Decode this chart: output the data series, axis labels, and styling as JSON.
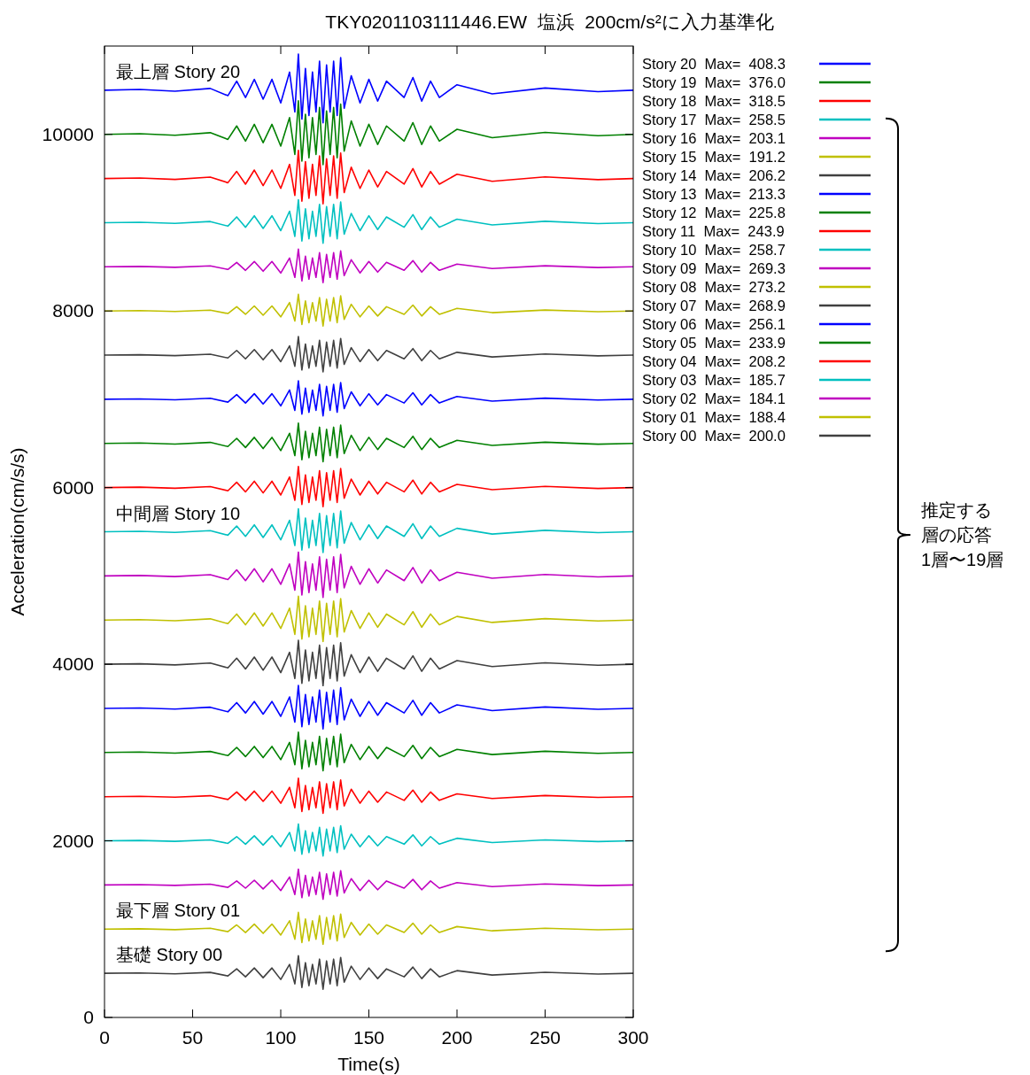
{
  "chart_data": {
    "type": "line",
    "title": "TKY0201103111446.EW  塩浜  200cm/s²に入力基準化",
    "xlabel": "Time(s)",
    "ylabel": "Acceleration(cm/s/s)",
    "xlim": [
      0,
      300
    ],
    "xticks": [
      0,
      50,
      100,
      150,
      200,
      250,
      300
    ],
    "ylim": [
      0,
      11000
    ],
    "yticks": [
      0,
      2000,
      4000,
      6000,
      8000,
      10000
    ],
    "grid": false,
    "legend": "right",
    "line_style": "solid",
    "marker": "none",
    "x": [
      0,
      20,
      40,
      60,
      70,
      75,
      80,
      85,
      90,
      95,
      100,
      105,
      108,
      110,
      112,
      114,
      116,
      118,
      120,
      122,
      124,
      126,
      128,
      130,
      132,
      134,
      136,
      140,
      145,
      150,
      155,
      160,
      170,
      175,
      180,
      185,
      190,
      200,
      220,
      250,
      280,
      300
    ],
    "series": [
      {
        "name": "Story 20  Max=  408.3",
        "color": "#0000ff",
        "values": [
          10500,
          10508,
          10488,
          10520,
          10438,
          10602,
          10418,
          10623,
          10398,
          10623,
          10356,
          10705,
          10254,
          10910,
          10172,
          10746,
          10213,
          10705,
          10254,
          10828,
          10131,
          10787,
          10254,
          10828,
          10213,
          10869,
          10295,
          10664,
          10356,
          10623,
          10377,
          10602,
          10418,
          10644,
          10377,
          10602,
          10418,
          10562,
          10459,
          10525,
          10484,
          10500
        ]
      },
      {
        "name": "Story 19  Max=  376.0",
        "color": "#008000",
        "values": [
          10000,
          10008,
          9989,
          10019,
          9943,
          10095,
          9924,
          10114,
          9905,
          10114,
          9867,
          10190,
          9772,
          10380,
          9696,
          10228,
          9734,
          10190,
          9772,
          10304,
          9658,
          10266,
          9772,
          10304,
          9734,
          10342,
          9810,
          10152,
          9867,
          10114,
          9886,
          10095,
          9924,
          10133,
          9886,
          10095,
          9924,
          10057,
          9962,
          10023,
          9985,
          10000
        ]
      },
      {
        "name": "Story 18  Max=  318.5",
        "color": "#ff0000",
        "values": [
          9500,
          9506,
          9490,
          9516,
          9452,
          9580,
          9436,
          9596,
          9420,
          9596,
          9388,
          9660,
          9308,
          9820,
          9244,
          9692,
          9276,
          9660,
          9308,
          9756,
          9212,
          9724,
          9308,
          9756,
          9276,
          9788,
          9340,
          9628,
          9388,
          9596,
          9404,
          9580,
          9436,
          9612,
          9404,
          9580,
          9436,
          9548,
          9468,
          9519,
          9487,
          9500
        ]
      },
      {
        "name": "Story 17  Max=  258.5",
        "color": "#00c0c0",
        "values": [
          9000,
          9005,
          8992,
          9013,
          8961,
          9065,
          8948,
          9078,
          8935,
          9078,
          8909,
          9130,
          8844,
          9260,
          8792,
          9156,
          8818,
          9130,
          8844,
          9208,
          8766,
          9182,
          8844,
          9208,
          8818,
          9234,
          8870,
          9104,
          8909,
          9078,
          8922,
          9065,
          8948,
          9091,
          8922,
          9065,
          8948,
          9039,
          8974,
          9016,
          8990,
          9000
        ]
      },
      {
        "name": "Story 16  Max=  203.1",
        "color": "#c000c0",
        "values": [
          8500,
          8504,
          8494,
          8510,
          8470,
          8550,
          8460,
          8560,
          8450,
          8560,
          8430,
          8600,
          8380,
          8700,
          8340,
          8620,
          8360,
          8600,
          8380,
          8660,
          8320,
          8640,
          8380,
          8660,
          8360,
          8680,
          8400,
          8580,
          8430,
          8560,
          8440,
          8550,
          8460,
          8570,
          8440,
          8550,
          8460,
          8530,
          8480,
          8512,
          8492,
          8500
        ]
      },
      {
        "name": "Story 15  Max=  191.2",
        "color": "#c0c000",
        "values": [
          8000,
          8004,
          7994,
          8010,
          7971,
          8048,
          7962,
          8057,
          7952,
          8057,
          7933,
          8095,
          7886,
          8190,
          7848,
          8114,
          7867,
          8095,
          7886,
          8152,
          7829,
          8133,
          7886,
          8152,
          7867,
          8171,
          7905,
          8076,
          7933,
          8057,
          7943,
          8048,
          7962,
          8067,
          7943,
          8048,
          7962,
          8029,
          7981,
          8011,
          7992,
          8000
        ]
      },
      {
        "name": "Story 14  Max=  206.2",
        "color": "#404040",
        "values": [
          7500,
          7504,
          7494,
          7511,
          7468,
          7553,
          7458,
          7563,
          7447,
          7563,
          7426,
          7605,
          7374,
          7710,
          7332,
          7626,
          7353,
          7605,
          7374,
          7668,
          7311,
          7647,
          7374,
          7668,
          7353,
          7689,
          7395,
          7584,
          7426,
          7563,
          7437,
          7553,
          7458,
          7574,
          7437,
          7553,
          7458,
          7532,
          7479,
          7513,
          7492,
          7500
        ]
      },
      {
        "name": "Story 13  Max=  213.3",
        "color": "#0000ff",
        "values": [
          7000,
          7004,
          6994,
          7011,
          6968,
          7053,
          6958,
          7063,
          6947,
          7063,
          6926,
          7105,
          6874,
          7210,
          6832,
          7126,
          6853,
          7105,
          6874,
          7168,
          6811,
          7147,
          6874,
          7168,
          6853,
          7189,
          6895,
          7084,
          6926,
          7063,
          6937,
          7053,
          6958,
          7074,
          6937,
          7053,
          6958,
          7032,
          6979,
          7013,
          6992,
          7000
        ]
      },
      {
        "name": "Story 12  Max=  225.8",
        "color": "#008000",
        "values": [
          6500,
          6505,
          6493,
          6512,
          6465,
          6558,
          6454,
          6569,
          6442,
          6569,
          6419,
          6615,
          6362,
          6730,
          6316,
          6638,
          6339,
          6615,
          6362,
          6684,
          6293,
          6661,
          6362,
          6684,
          6339,
          6707,
          6385,
          6592,
          6419,
          6569,
          6431,
          6558,
          6454,
          6581,
          6431,
          6558,
          6454,
          6535,
          6477,
          6514,
          6491,
          6500
        ]
      },
      {
        "name": "Story 11  Max=  243.9",
        "color": "#ff0000",
        "values": [
          6000,
          6005,
          5993,
          6012,
          5964,
          6060,
          5952,
          6072,
          5940,
          6072,
          5916,
          6120,
          5856,
          6240,
          5808,
          6144,
          5832,
          6120,
          5856,
          6192,
          5784,
          6168,
          5856,
          6192,
          5832,
          6216,
          5880,
          6096,
          5916,
          6072,
          5928,
          6060,
          5952,
          6084,
          5928,
          6060,
          5952,
          6036,
          5976,
          6014,
          5990,
          6000
        ]
      },
      {
        "name": "Story 10  Max=  258.7",
        "color": "#00c0c0",
        "values": [
          5500,
          5505,
          5492,
          5513,
          5461,
          5565,
          5448,
          5578,
          5435,
          5578,
          5409,
          5630,
          5344,
          5760,
          5292,
          5656,
          5318,
          5630,
          5344,
          5708,
          5266,
          5682,
          5344,
          5708,
          5318,
          5734,
          5370,
          5604,
          5409,
          5578,
          5422,
          5565,
          5448,
          5591,
          5422,
          5565,
          5448,
          5539,
          5474,
          5516,
          5490,
          5500
        ]
      },
      {
        "name": "Story 09  Max=  269.3",
        "color": "#c000c0",
        "values": [
          5000,
          5005,
          4992,
          5014,
          4959,
          5068,
          4946,
          5081,
          4932,
          5081,
          4905,
          5135,
          4838,
          5270,
          4784,
          5162,
          4811,
          5135,
          4838,
          5216,
          4757,
          5189,
          4838,
          5216,
          4811,
          5243,
          4865,
          5108,
          4905,
          5081,
          4919,
          5068,
          4946,
          5095,
          4919,
          5068,
          4946,
          5041,
          4973,
          5016,
          4989,
          5000
        ]
      },
      {
        "name": "Story 08  Max=  273.2",
        "color": "#c0c000",
        "values": [
          4500,
          4505,
          4492,
          4514,
          4459,
          4568,
          4446,
          4581,
          4432,
          4581,
          4405,
          4635,
          4338,
          4770,
          4284,
          4662,
          4311,
          4635,
          4338,
          4716,
          4257,
          4689,
          4338,
          4716,
          4311,
          4743,
          4365,
          4608,
          4405,
          4581,
          4419,
          4568,
          4446,
          4595,
          4419,
          4568,
          4446,
          4541,
          4473,
          4516,
          4489,
          4500
        ]
      },
      {
        "name": "Story 07  Max=  268.9",
        "color": "#404040",
        "values": [
          4000,
          4005,
          3992,
          4014,
          3959,
          4068,
          3946,
          4081,
          3932,
          4081,
          3905,
          4135,
          3838,
          4270,
          3784,
          4162,
          3811,
          4135,
          3838,
          4216,
          3757,
          4189,
          3838,
          4216,
          3811,
          4243,
          3865,
          4108,
          3905,
          4081,
          3919,
          4068,
          3946,
          4095,
          3919,
          4068,
          3946,
          4041,
          3973,
          4016,
          3989,
          4000
        ]
      },
      {
        "name": "Story 06  Max=  256.1",
        "color": "#0000ff",
        "values": [
          3500,
          3505,
          3492,
          3513,
          3461,
          3565,
          3448,
          3578,
          3435,
          3578,
          3409,
          3630,
          3344,
          3760,
          3292,
          3656,
          3318,
          3630,
          3344,
          3708,
          3266,
          3682,
          3344,
          3708,
          3318,
          3734,
          3370,
          3604,
          3409,
          3578,
          3422,
          3565,
          3448,
          3591,
          3422,
          3565,
          3448,
          3539,
          3474,
          3516,
          3490,
          3500
        ]
      },
      {
        "name": "Story 05  Max=  233.9",
        "color": "#008000",
        "values": [
          3000,
          3005,
          2993,
          3012,
          2965,
          3058,
          2954,
          3069,
          2942,
          3069,
          2919,
          3115,
          2862,
          3230,
          2816,
          3138,
          2839,
          3115,
          2862,
          3184,
          2793,
          3161,
          2862,
          3184,
          2839,
          3207,
          2885,
          3092,
          2919,
          3069,
          2931,
          3058,
          2954,
          3081,
          2931,
          3058,
          2954,
          3035,
          2977,
          3014,
          2991,
          3000
        ]
      },
      {
        "name": "Story 04  Max=  208.2",
        "color": "#ff0000",
        "values": [
          2500,
          2504,
          2494,
          2511,
          2468,
          2553,
          2458,
          2563,
          2447,
          2563,
          2426,
          2605,
          2374,
          2710,
          2332,
          2626,
          2353,
          2605,
          2374,
          2668,
          2311,
          2647,
          2374,
          2668,
          2353,
          2689,
          2395,
          2584,
          2426,
          2563,
          2437,
          2553,
          2458,
          2574,
          2437,
          2553,
          2458,
          2532,
          2479,
          2513,
          2492,
          2500
        ]
      },
      {
        "name": "Story 03  Max=  185.7",
        "color": "#00c0c0",
        "values": [
          2000,
          2004,
          1994,
          2010,
          1971,
          2048,
          1962,
          2057,
          1952,
          2057,
          1933,
          2095,
          1886,
          2190,
          1848,
          2114,
          1867,
          2095,
          1886,
          2152,
          1829,
          2133,
          1886,
          2152,
          1867,
          2171,
          1905,
          2076,
          1933,
          2057,
          1943,
          2048,
          1962,
          2067,
          1943,
          2048,
          1962,
          2029,
          1981,
          2011,
          1992,
          2000
        ]
      },
      {
        "name": "Story 02  Max=  184.1",
        "color": "#c000c0",
        "values": [
          1500,
          1504,
          1495,
          1509,
          1473,
          1545,
          1464,
          1554,
          1455,
          1554,
          1437,
          1590,
          1392,
          1680,
          1356,
          1608,
          1374,
          1590,
          1392,
          1644,
          1338,
          1626,
          1392,
          1644,
          1374,
          1662,
          1410,
          1572,
          1437,
          1554,
          1446,
          1545,
          1464,
          1563,
          1446,
          1545,
          1464,
          1527,
          1482,
          1511,
          1493,
          1500
        ]
      },
      {
        "name": "Story 01  Max=  188.4",
        "color": "#c0c000",
        "values": [
          1000,
          1004,
          994,
          1010,
          971,
          1048,
          962,
          1057,
          952,
          1057,
          933,
          1095,
          886,
          1190,
          848,
          1114,
          867,
          1095,
          886,
          1152,
          829,
          1133,
          886,
          1152,
          867,
          1171,
          905,
          1076,
          933,
          1057,
          943,
          1048,
          962,
          1067,
          943,
          1048,
          962,
          1029,
          981,
          1011,
          992,
          1000
        ]
      },
      {
        "name": "Story 00  Max=  200.0",
        "color": "#404040",
        "values": [
          500,
          504,
          494,
          510,
          470,
          550,
          460,
          560,
          450,
          560,
          430,
          600,
          380,
          700,
          340,
          620,
          360,
          600,
          380,
          660,
          320,
          640,
          380,
          660,
          360,
          680,
          400,
          580,
          430,
          560,
          440,
          550,
          460,
          570,
          440,
          550,
          460,
          530,
          480,
          512,
          492,
          500
        ]
      }
    ],
    "annotations": [
      {
        "text": "最上層 Story 20",
        "y": 10500
      },
      {
        "text": "中間層 Story 10",
        "y": 5500
      },
      {
        "text": "最下層 Story 01",
        "y": 1000
      },
      {
        "text": "基礎 Story 00",
        "y": 500
      },
      "推定する",
      "層の応答",
      "1層〜19層"
    ]
  }
}
